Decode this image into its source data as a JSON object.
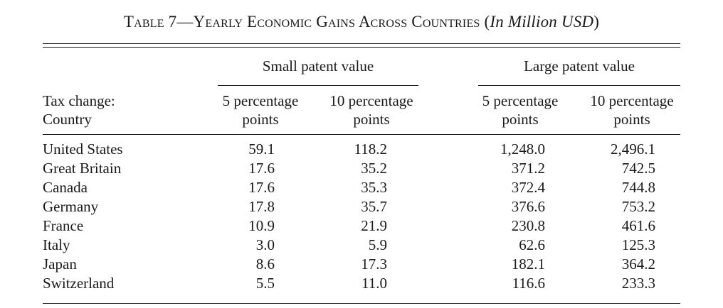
{
  "table": {
    "title_prefix": "Table 7—Yearly Economic Gains Across Countries (",
    "title_italic": "In Million USD",
    "title_suffix": ")",
    "group_headers": [
      "Small patent value",
      "Large patent value"
    ],
    "stub_header_line1": "Tax change:",
    "stub_header_line2": "Country",
    "column_headers": [
      {
        "line1": "5 percentage",
        "line2": "points"
      },
      {
        "line1": "10 percentage",
        "line2": "points"
      },
      {
        "line1": "5 percentage",
        "line2": "points"
      },
      {
        "line1": "10 percentage",
        "line2": "points"
      }
    ],
    "rows": [
      {
        "country": "United States",
        "values": [
          "59.1",
          "118.2",
          "1,248.0",
          "2,496.1"
        ]
      },
      {
        "country": "Great Britain",
        "values": [
          "17.6",
          "35.2",
          "371.2",
          "742.5"
        ]
      },
      {
        "country": "Canada",
        "values": [
          "17.6",
          "35.3",
          "372.4",
          "744.8"
        ]
      },
      {
        "country": "Germany",
        "values": [
          "17.8",
          "35.7",
          "376.6",
          "753.2"
        ]
      },
      {
        "country": "France",
        "values": [
          "10.9",
          "21.9",
          "230.8",
          "461.6"
        ]
      },
      {
        "country": "Italy",
        "values": [
          "3.0",
          "5.9",
          "62.6",
          "125.3"
        ]
      },
      {
        "country": "Japan",
        "values": [
          "8.6",
          "17.3",
          "182.1",
          "364.2"
        ]
      },
      {
        "country": "Switzerland",
        "values": [
          "5.5",
          "11.0",
          "116.6",
          "233.3"
        ]
      }
    ]
  }
}
